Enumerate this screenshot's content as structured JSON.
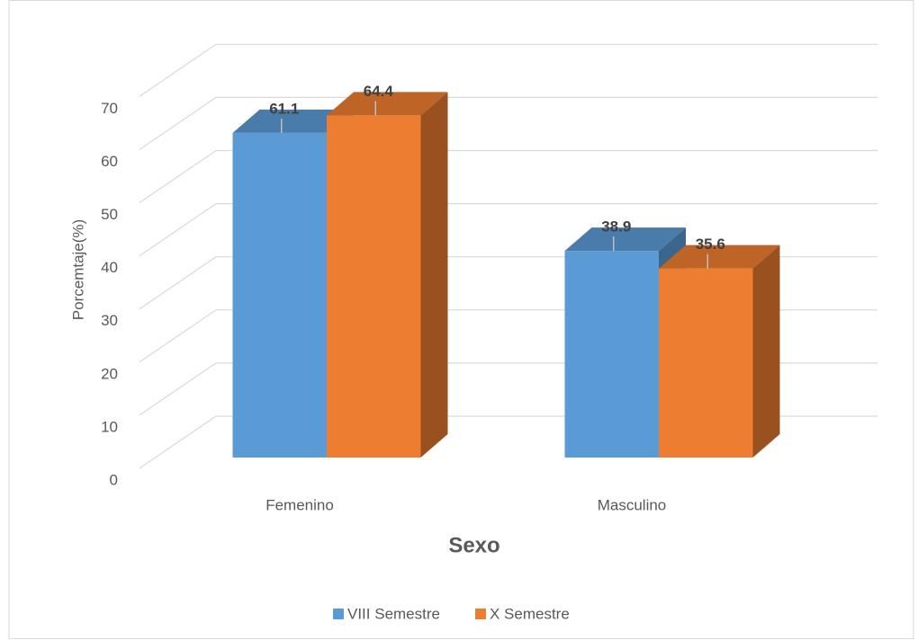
{
  "chart_data": {
    "type": "bar3d",
    "x_label": "Sexo",
    "y_label": "Porcemtaje(%)",
    "categories": [
      "Femenino",
      "Masculino"
    ],
    "series": [
      {
        "name": "VIII Semestre",
        "color": "#5b9bd5",
        "values": [
          61.1,
          38.9
        ]
      },
      {
        "name": "X Semestre",
        "color": "#ed7d31",
        "values": [
          64.4,
          35.6
        ]
      }
    ],
    "ylim": [
      0,
      70
    ],
    "yticks": [
      0,
      10,
      20,
      30,
      40,
      50,
      60,
      70
    ],
    "grid": true,
    "legend": "bottom"
  }
}
